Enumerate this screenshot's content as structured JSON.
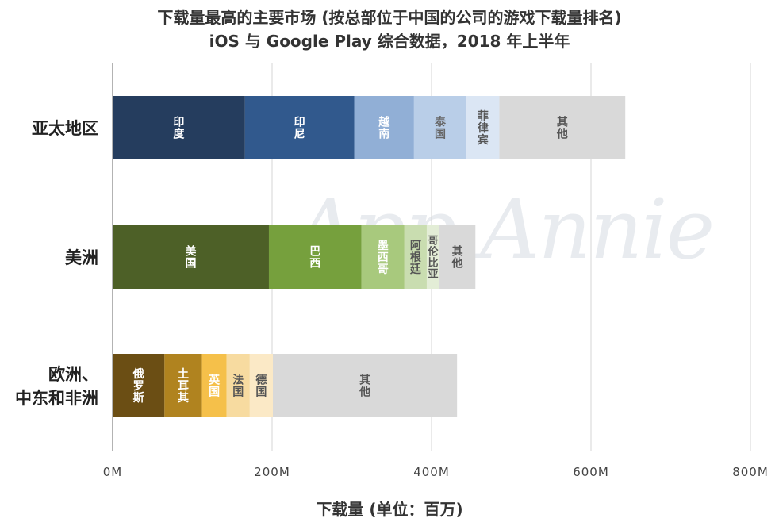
{
  "title": "下载量最高的主要市场 (按总部位于中国的公司的游戏下载量排名)",
  "subtitle": "iOS 与 Google Play 综合数据，2018 年上半年",
  "watermark": "App Annie",
  "chart_data": {
    "type": "bar",
    "orientation": "horizontal",
    "stacked": true,
    "xlabel": "下载量 (单位：百万)",
    "xlim": [
      0,
      800
    ],
    "xticks": [
      "0M",
      "200M",
      "400M",
      "600M",
      "800M"
    ],
    "xtick_values": [
      0,
      200,
      400,
      600,
      800
    ],
    "grid": "vertical",
    "categories": [
      "亚太地区",
      "美洲",
      "欧洲、中东和非洲"
    ],
    "bars": [
      {
        "region": "亚太地区",
        "segments": [
          {
            "label": "印度",
            "value": 166,
            "color": "#253d5e",
            "text_color": "#ffffff"
          },
          {
            "label": "印尼",
            "value": 137,
            "color": "#31598d",
            "text_color": "#ffffff"
          },
          {
            "label": "越南",
            "value": 75,
            "color": "#91afd6",
            "text_color": "#ffffff"
          },
          {
            "label": "泰国",
            "value": 66,
            "color": "#b9cee8",
            "text_color": "#666666"
          },
          {
            "label": "菲律宾",
            "value": 41,
            "color": "#dbe6f4",
            "text_color": "#555555"
          },
          {
            "label": "其他",
            "value": 158,
            "color": "#d9d9d9",
            "text_color": "#555555"
          }
        ]
      },
      {
        "region": "美洲",
        "segments": [
          {
            "label": "美国",
            "value": 196,
            "color": "#4d6027",
            "text_color": "#ffffff"
          },
          {
            "label": "巴西",
            "value": 116,
            "color": "#76a03d",
            "text_color": "#ffffff"
          },
          {
            "label": "墨西哥",
            "value": 54,
            "color": "#a8c97d",
            "text_color": "#ffffff"
          },
          {
            "label": "阿根廷",
            "value": 28,
            "color": "#c9ddb0",
            "text_color": "#555555"
          },
          {
            "label": "哥伦比亚",
            "value": 16,
            "color": "#e3edd6",
            "text_color": "#555555"
          },
          {
            "label": "其他",
            "value": 45,
            "color": "#d9d9d9",
            "text_color": "#555555"
          }
        ]
      },
      {
        "region": "欧洲、中东和非洲",
        "segments": [
          {
            "label": "俄罗斯",
            "value": 65,
            "color": "#6b4e14",
            "text_color": "#ffffff"
          },
          {
            "label": "土耳其",
            "value": 47,
            "color": "#b0831f",
            "text_color": "#ffffff"
          },
          {
            "label": "英国",
            "value": 31,
            "color": "#f5c04a",
            "text_color": "#ffffff"
          },
          {
            "label": "法国",
            "value": 29,
            "color": "#f7dba0",
            "text_color": "#555555"
          },
          {
            "label": "德国",
            "value": 29,
            "color": "#fbe9c6",
            "text_color": "#555555"
          },
          {
            "label": "其他",
            "value": 231,
            "color": "#d9d9d9",
            "text_color": "#555555"
          }
        ]
      }
    ]
  }
}
